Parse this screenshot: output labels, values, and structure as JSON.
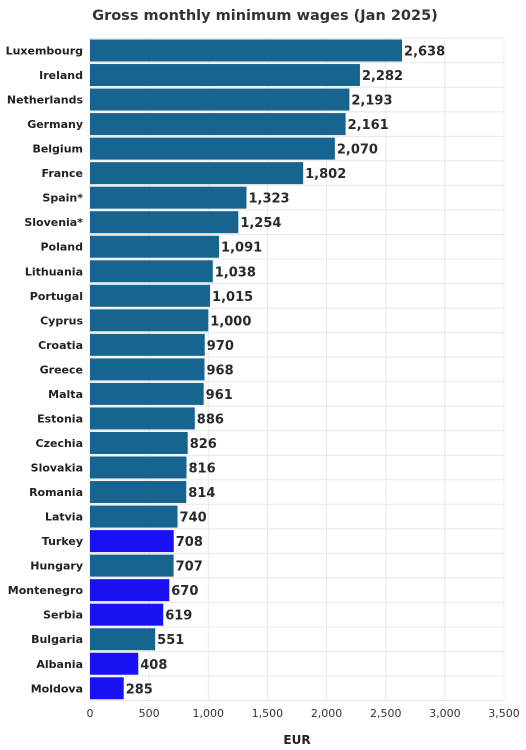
{
  "chart_data": {
    "type": "bar",
    "orientation": "horizontal",
    "title": "Gross monthly minimum wages (Jan 2025)",
    "xlabel": "EUR",
    "ylabel": "",
    "xlim": [
      0,
      3500
    ],
    "xticks": [
      0,
      500,
      1000,
      1500,
      2000,
      2500,
      3000,
      3500
    ],
    "xtick_labels": [
      "0",
      "500",
      "1,000",
      "1,500",
      "2,000",
      "2,500",
      "3,000",
      "3,500"
    ],
    "grid": true,
    "colors": {
      "eu_member": "#16648f",
      "non_eu": "#1a12f5"
    },
    "categories": [
      "Luxembourg",
      "Ireland",
      "Netherlands",
      "Germany",
      "Belgium",
      "France",
      "Spain*",
      "Slovenia*",
      "Poland",
      "Lithuania",
      "Portugal",
      "Cyprus",
      "Croatia",
      "Greece",
      "Malta",
      "Estonia",
      "Czechia",
      "Slovakia",
      "Romania",
      "Latvia",
      "Turkey",
      "Hungary",
      "Montenegro",
      "Serbia",
      "Bulgaria",
      "Albania",
      "Moldova"
    ],
    "values": [
      2638,
      2282,
      2193,
      2161,
      2070,
      1802,
      1323,
      1254,
      1091,
      1038,
      1015,
      1000,
      970,
      968,
      961,
      886,
      826,
      816,
      814,
      740,
      708,
      707,
      670,
      619,
      551,
      408,
      285
    ],
    "value_labels": [
      "2,638",
      "2,282",
      "2,193",
      "2,161",
      "2,070",
      "1,802",
      "1,323",
      "1,254",
      "1,091",
      "1,038",
      "1,015",
      "1,000",
      "970",
      "968",
      "961",
      "886",
      "826",
      "816",
      "814",
      "740",
      "708",
      "707",
      "670",
      "619",
      "551",
      "408",
      "285"
    ],
    "bar_groups": [
      "eu_member",
      "eu_member",
      "eu_member",
      "eu_member",
      "eu_member",
      "eu_member",
      "eu_member",
      "eu_member",
      "eu_member",
      "eu_member",
      "eu_member",
      "eu_member",
      "eu_member",
      "eu_member",
      "eu_member",
      "eu_member",
      "eu_member",
      "eu_member",
      "eu_member",
      "eu_member",
      "non_eu",
      "eu_member",
      "non_eu",
      "non_eu",
      "eu_member",
      "non_eu",
      "non_eu"
    ]
  }
}
